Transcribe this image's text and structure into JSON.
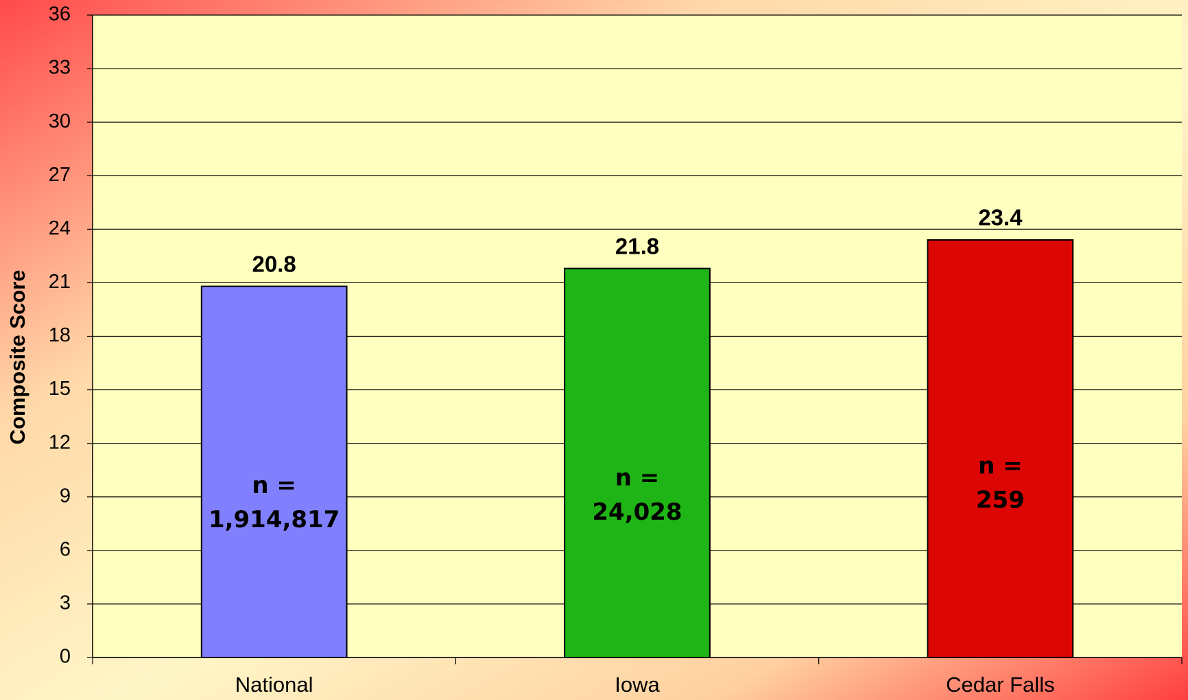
{
  "chart_data": {
    "type": "bar",
    "y_label": "Composite Score",
    "categories": [
      "National",
      "Iowa",
      "Cedar Falls"
    ],
    "values": [
      20.8,
      21.8,
      23.4
    ],
    "colors": [
      "#8080ff",
      "#1fb516",
      "#dc0605"
    ],
    "bar_notes": [
      [
        "n =",
        "1,914,817"
      ],
      [
        "n =",
        "24,028"
      ],
      [
        "n =",
        "259"
      ]
    ],
    "ylim": [
      0,
      36
    ],
    "yticks": [
      0,
      3,
      6,
      9,
      12,
      15,
      18,
      21,
      24,
      27,
      30,
      33,
      36
    ],
    "grid": true
  }
}
